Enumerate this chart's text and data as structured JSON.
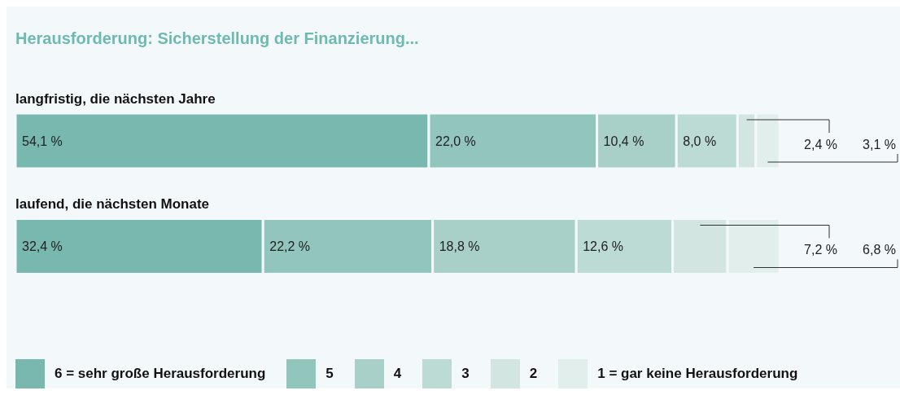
{
  "chart_data": {
    "type": "bar",
    "title": "Herausforderung: Sicherstellung der Finanzierung...",
    "orientation": "horizontal",
    "stacked": true,
    "legend": "bottom",
    "categories": [
      "langfristig, die nächsten Jahre",
      "laufend, die nächsten Monate"
    ],
    "series": [
      {
        "name": "6 = sehr große Herausforderung",
        "color": "#78b8ae",
        "values": [
          54.1,
          32.4
        ],
        "value_labels": [
          "54,1 %",
          "32,4 %"
        ]
      },
      {
        "name": "5",
        "color": "#92c5bc",
        "values": [
          22.0,
          22.2
        ],
        "value_labels": [
          "22,0 %",
          "22,2 %"
        ]
      },
      {
        "name": "4",
        "color": "#a8d0c8",
        "values": [
          10.4,
          18.8
        ],
        "value_labels": [
          "10,4 %",
          "18,8 %"
        ]
      },
      {
        "name": "3",
        "color": "#bcdbd5",
        "values": [
          8.0,
          12.6
        ],
        "value_labels": [
          "8,0 %",
          "12,6 %"
        ]
      },
      {
        "name": "2",
        "color": "#d2e5e1",
        "values": [
          2.4,
          7.2
        ],
        "value_labels": [
          "2,4 %",
          "7,2 %"
        ]
      },
      {
        "name": "1 = gar keine Herausforderung",
        "color": "#e2eeeb",
        "values": [
          3.1,
          6.8
        ],
        "value_labels": [
          "3,1 %",
          "6,8 %"
        ]
      }
    ]
  }
}
